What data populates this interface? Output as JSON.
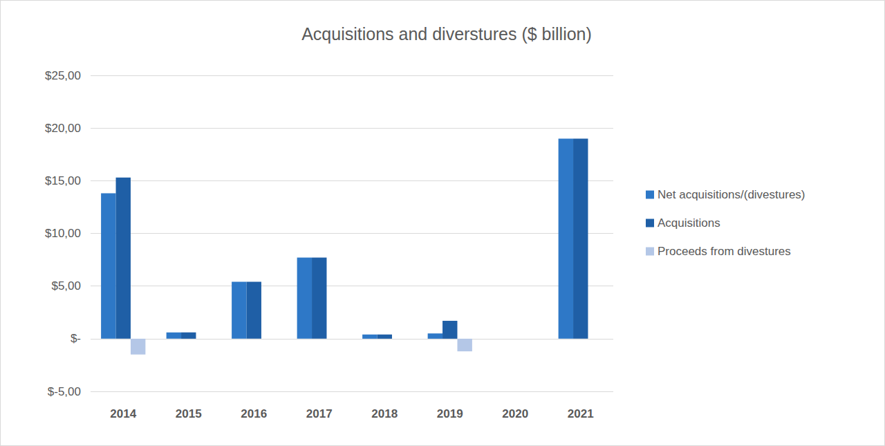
{
  "chart_data": {
    "type": "bar",
    "title": "Acquisitions and diverstures ($ billion)",
    "categories": [
      "2014",
      "2015",
      "2016",
      "2017",
      "2018",
      "2019",
      "2020",
      "2021"
    ],
    "series": [
      {
        "name": "Net acquisitions/(divestures)",
        "color": "#2E78C7",
        "values": [
          13.8,
          0.6,
          5.4,
          7.7,
          0.4,
          0.5,
          0,
          19.0
        ]
      },
      {
        "name": "Acquisitions",
        "color": "#1F5FA6",
        "values": [
          15.3,
          0.6,
          5.4,
          7.7,
          0.4,
          1.7,
          0,
          19.0
        ]
      },
      {
        "name": "Proceeds from divestures",
        "color": "#B4C7E7",
        "values": [
          -1.5,
          0,
          0,
          0,
          0,
          -1.2,
          0,
          0
        ]
      }
    ],
    "ylim": [
      -5,
      25
    ],
    "yticks": [
      {
        "value": -5,
        "label": "$-5,00"
      },
      {
        "value": 0,
        "label": "$-"
      },
      {
        "value": 5,
        "label": "$5,00"
      },
      {
        "value": 10,
        "label": "$10,00"
      },
      {
        "value": 15,
        "label": "$15,00"
      },
      {
        "value": 20,
        "label": "$20,00"
      },
      {
        "value": 25,
        "label": "$25,00"
      }
    ],
    "grid": true,
    "legend": "right"
  }
}
